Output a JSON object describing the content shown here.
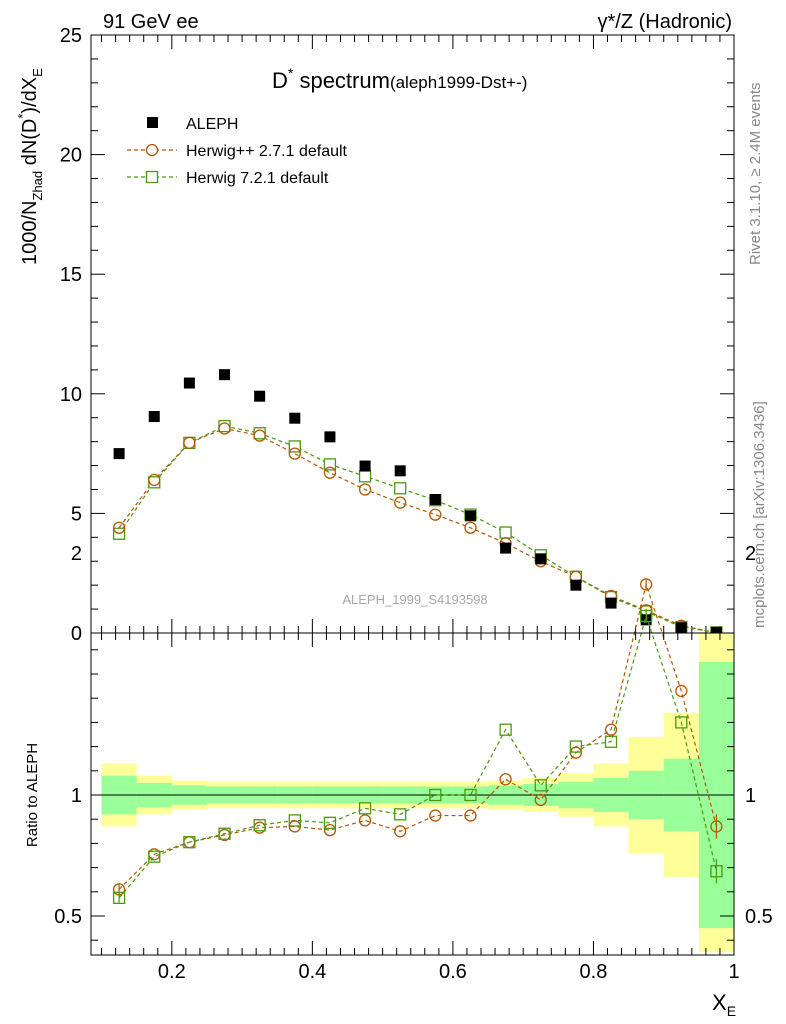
{
  "header": {
    "left": "91 GeV ee",
    "right": "γ*/Z (Hadronic)"
  },
  "side": {
    "rivet": "Rivet 3.1.10, ≥ 2.4M events",
    "mcplots": "mcplots.cern.ch [arXiv:1306.3436]"
  },
  "plot": {
    "title_main": "D",
    "title_sup": "*",
    "title_rest": " spectrum",
    "title_sub": "(aleph1999-Dst+-)",
    "watermark": "ALEPH_1999_S4193598",
    "ylabel_parts": {
      "a": "1000/N",
      "b": "Zhad",
      "c": " dN(D",
      "d": "*",
      "e": ")/dX",
      "f": "E"
    },
    "xlabel_main": "X",
    "xlabel_sub": "E",
    "ratio_ylabel": "Ratio to ALEPH"
  },
  "legend": [
    {
      "label": "ALEPH",
      "marker": "square-filled",
      "color": "#000000"
    },
    {
      "label": "Herwig++ 2.7.1 default",
      "marker": "circle-open",
      "color": "#b35806"
    },
    {
      "label": "Herwig 7.2.1 default",
      "marker": "square-open",
      "color": "#4a9a0c"
    }
  ],
  "chart_data": {
    "type": "scatter",
    "x": [
      0.125,
      0.175,
      0.225,
      0.275,
      0.325,
      0.375,
      0.425,
      0.475,
      0.525,
      0.575,
      0.625,
      0.675,
      0.725,
      0.775,
      0.825,
      0.875,
      0.925,
      0.975
    ],
    "series": [
      {
        "name": "ALEPH",
        "values": [
          7.5,
          9.05,
          10.45,
          10.8,
          9.9,
          8.98,
          8.2,
          6.98,
          6.78,
          5.58,
          4.9,
          3.55,
          3.1,
          2.0,
          1.25,
          0.55,
          0.22,
          0.03
        ]
      },
      {
        "name": "Herwig++ 2.7.1 default",
        "values": [
          4.4,
          6.4,
          7.95,
          8.55,
          8.25,
          7.5,
          6.7,
          6.0,
          5.45,
          4.95,
          4.4,
          3.75,
          3.0,
          2.35,
          1.55,
          0.95,
          0.3,
          0.02
        ]
      },
      {
        "name": "Herwig 7.2.1 default",
        "values": [
          4.15,
          6.3,
          7.95,
          8.65,
          8.35,
          7.8,
          7.05,
          6.55,
          6.05,
          5.55,
          4.95,
          4.2,
          3.25,
          2.35,
          1.5,
          0.9,
          0.25,
          0.02
        ]
      }
    ],
    "ratio": {
      "ylabel": "Ratio to ALEPH",
      "ylim": [
        0.35,
        2.3
      ],
      "yticks": [
        0.5,
        1,
        2
      ],
      "series": [
        {
          "name": "Herwig++ 2.7.1 default",
          "values": [
            0.61,
            0.755,
            0.805,
            0.835,
            0.865,
            0.87,
            0.855,
            0.895,
            0.85,
            0.915,
            0.915,
            1.065,
            0.98,
            1.175,
            1.27,
            1.87,
            1.43,
            0.87
          ],
          "err": [
            0.02,
            0.0,
            0.0,
            0.0,
            0.0,
            0.0,
            0.0,
            0.0,
            0.0,
            0.0,
            0.0,
            0.0,
            0.0,
            0.0,
            0.0,
            0.02,
            0.0,
            0.05
          ]
        },
        {
          "name": "Herwig 7.2.1 default",
          "values": [
            0.575,
            0.745,
            0.805,
            0.84,
            0.875,
            0.895,
            0.885,
            0.945,
            0.92,
            1.0,
            1.0,
            1.27,
            1.04,
            1.2,
            1.22,
            1.74,
            1.3,
            0.685
          ],
          "err": [
            0.02,
            0.0,
            0.0,
            0.0,
            0.0,
            0.0,
            0.0,
            0.0,
            0.0,
            0.0,
            0.0,
            0.0,
            0.0,
            0.0,
            0.0,
            0.03,
            0.0,
            0.05
          ]
        }
      ],
      "band_inner": [
        [
          0.92,
          1.08
        ],
        [
          0.95,
          1.05
        ],
        [
          0.96,
          1.04
        ],
        [
          0.965,
          1.035
        ],
        [
          0.965,
          1.035
        ],
        [
          0.965,
          1.035
        ],
        [
          0.965,
          1.035
        ],
        [
          0.965,
          1.035
        ],
        [
          0.965,
          1.035
        ],
        [
          0.965,
          1.035
        ],
        [
          0.965,
          1.035
        ],
        [
          0.96,
          1.04
        ],
        [
          0.955,
          1.045
        ],
        [
          0.945,
          1.055
        ],
        [
          0.93,
          1.07
        ],
        [
          0.9,
          1.1
        ],
        [
          0.85,
          1.15
        ],
        [
          0.45,
          1.55
        ]
      ],
      "band_outer": [
        [
          0.87,
          1.13
        ],
        [
          0.92,
          1.08
        ],
        [
          0.94,
          1.06
        ],
        [
          0.945,
          1.055
        ],
        [
          0.945,
          1.055
        ],
        [
          0.945,
          1.055
        ],
        [
          0.945,
          1.055
        ],
        [
          0.945,
          1.055
        ],
        [
          0.945,
          1.055
        ],
        [
          0.945,
          1.055
        ],
        [
          0.945,
          1.055
        ],
        [
          0.94,
          1.06
        ],
        [
          0.93,
          1.07
        ],
        [
          0.91,
          1.09
        ],
        [
          0.87,
          1.13
        ],
        [
          0.76,
          1.24
        ],
        [
          0.66,
          1.34
        ],
        [
          0.35,
          2.0
        ]
      ]
    },
    "xlim": [
      0.085,
      1.0
    ],
    "ylim": [
      0,
      25
    ],
    "xticks": [
      0.2,
      0.4,
      0.6,
      0.8,
      1
    ],
    "xticklabels": [
      "0.2",
      "0.4",
      "0.6",
      "0.8",
      "1"
    ],
    "yticks": [
      0,
      5,
      10,
      15,
      20,
      25
    ],
    "yticklabels": [
      "0",
      "5",
      "10",
      "15",
      "20",
      "25"
    ],
    "ratio_yticklabels": [
      "0.5",
      "1",
      "2"
    ],
    "xlabel": "X_E",
    "ylabel": "1000/N_Zhad dN(D*)/dX_E",
    "title": "D* spectrum (aleph1999-Dst+-)",
    "legend_position": "top-left"
  }
}
